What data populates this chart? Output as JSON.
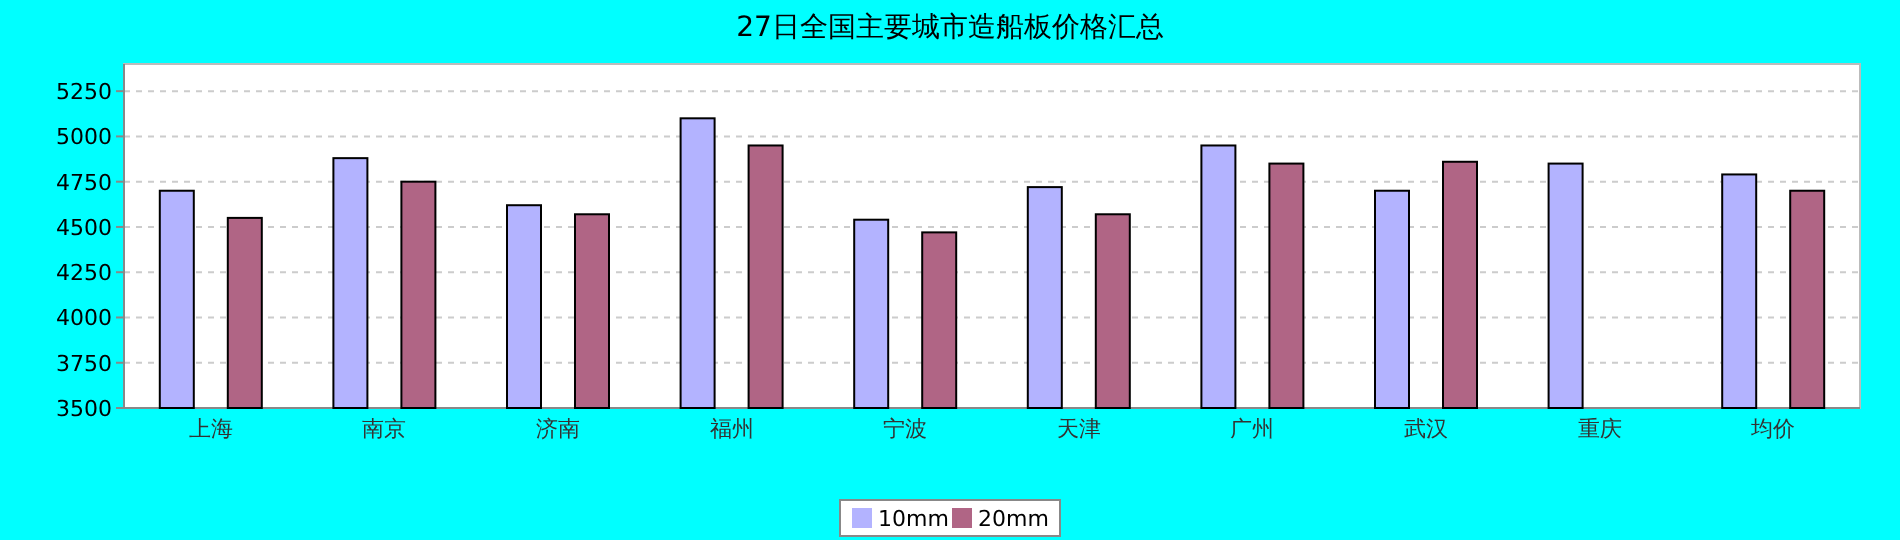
{
  "chart_data": {
    "type": "bar",
    "title": "27日全国主要城市造船板价格汇总",
    "categories": [
      "上海",
      "南京",
      "济南",
      "福州",
      "宁波",
      "天津",
      "广州",
      "武汉",
      "重庆",
      "均价"
    ],
    "series": [
      {
        "name": "10mm",
        "color": "#b3b3ff",
        "values": [
          4700,
          4880,
          4620,
          5100,
          4540,
          4720,
          4950,
          4700,
          4850,
          4790
        ]
      },
      {
        "name": "20mm",
        "color": "#b06585",
        "values": [
          4550,
          4750,
          4570,
          4950,
          4470,
          4570,
          4850,
          4860,
          null,
          4700
        ]
      }
    ],
    "ylim": [
      3500,
      5400
    ],
    "yticks": [
      3500,
      3750,
      4000,
      4250,
      4500,
      4750,
      5000,
      5250
    ],
    "grid": "y",
    "legend": "bottom"
  }
}
